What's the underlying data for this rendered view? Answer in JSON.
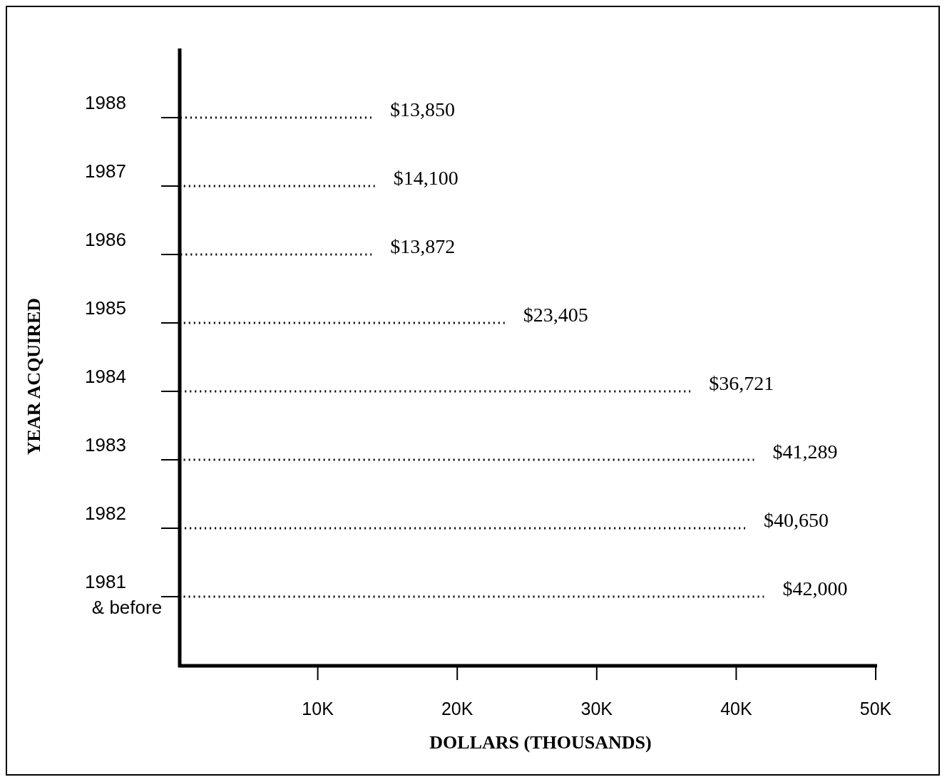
{
  "chart_data": {
    "type": "bar",
    "orientation": "horizontal",
    "xlabel": "DOLLARS (THOUSANDS)",
    "ylabel": "YEAR ACQUIRED",
    "categories": [
      "1988",
      "1987",
      "1986",
      "1985",
      "1984",
      "1983",
      "1982",
      "1981 & before"
    ],
    "values": [
      13850,
      14100,
      13872,
      23405,
      36721,
      41289,
      40650,
      42000
    ],
    "value_labels": [
      "$13,850",
      "$14,100",
      "$13,872",
      "$23,405",
      "$36,721",
      "$41,289",
      "$40,650",
      "$42,000"
    ],
    "color": "#000000",
    "line_style": "dotted",
    "xlim": [
      0,
      50000
    ],
    "xticks": [
      {
        "value": 10000,
        "label": "10K"
      },
      {
        "value": 20000,
        "label": "20K"
      },
      {
        "value": 30000,
        "label": "30K"
      },
      {
        "value": 40000,
        "label": "40K"
      },
      {
        "value": 50000,
        "label": "50K"
      }
    ],
    "grid": false
  }
}
